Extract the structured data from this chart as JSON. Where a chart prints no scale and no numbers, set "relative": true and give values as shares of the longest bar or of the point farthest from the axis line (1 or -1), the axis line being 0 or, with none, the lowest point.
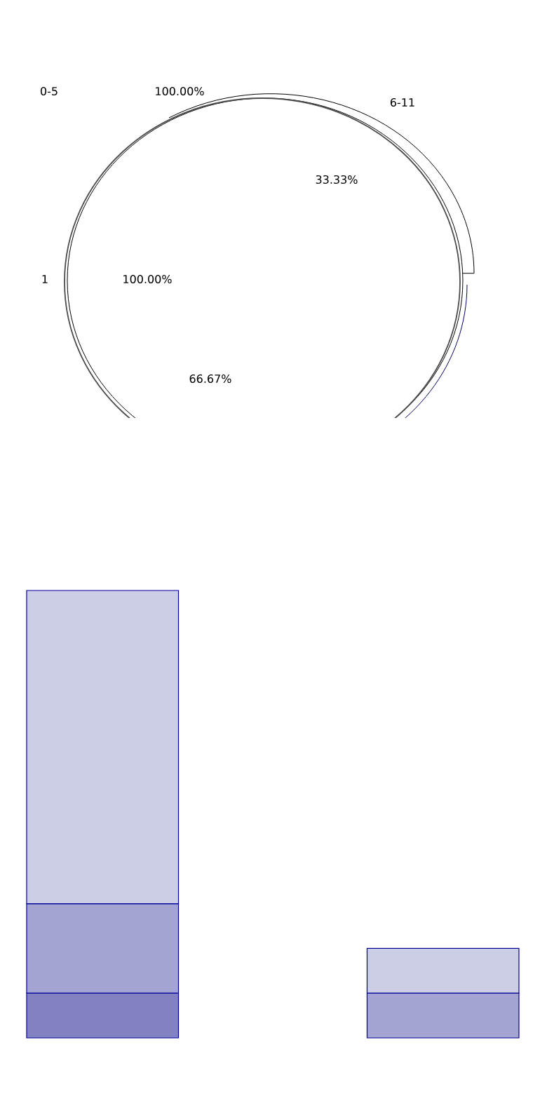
{
  "chart_data": [
    {
      "type": "other",
      "annotations": [
        "0-5",
        "100.00%",
        "6-11",
        "33.33%",
        "1",
        "100.00%",
        "66.67%"
      ]
    },
    {
      "type": "bar",
      "stacked": true,
      "relative": true,
      "categories": [
        null,
        null
      ],
      "series": [
        {
          "color": "#8282c1",
          "values": [
            0.1,
            null
          ]
        },
        {
          "color": "#a3a4d1",
          "values": [
            0.2,
            0.1
          ]
        },
        {
          "color": "#cccee6",
          "values": [
            0.7,
            0.1
          ]
        }
      ]
    }
  ]
}
